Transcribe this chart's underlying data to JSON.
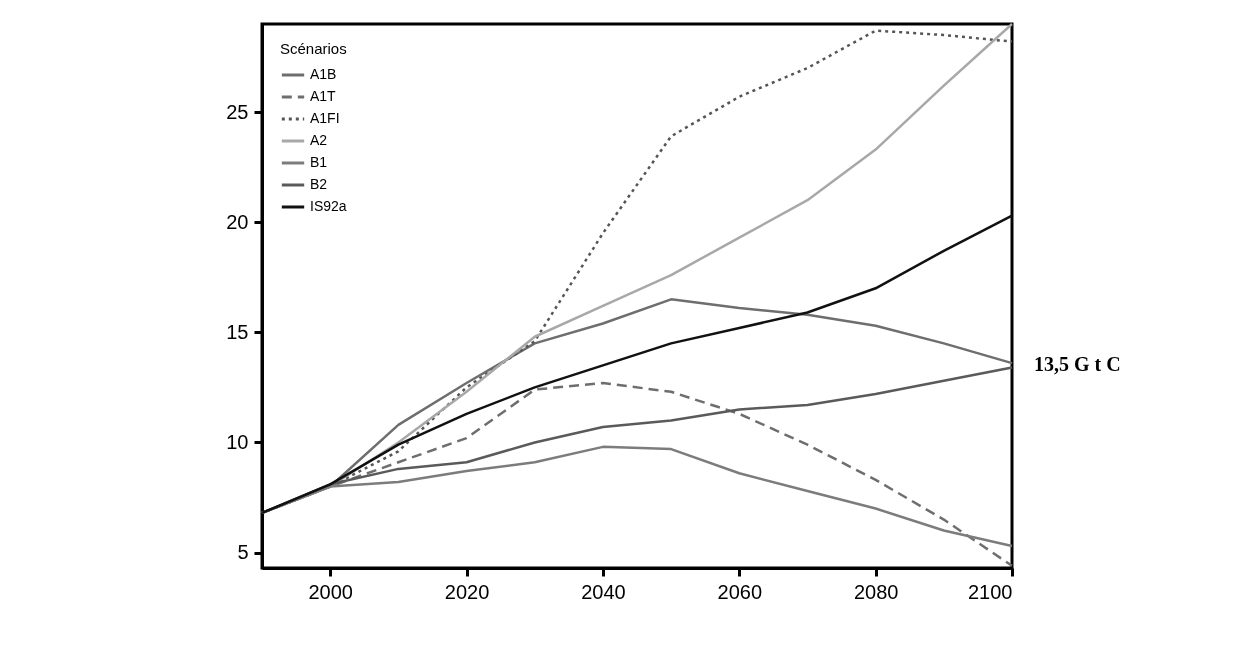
{
  "chart_data": {
    "type": "line",
    "x": [
      1990,
      2000,
      2010,
      2020,
      2030,
      2040,
      2050,
      2060,
      2070,
      2080,
      2090,
      2100
    ],
    "series": [
      {
        "name": "A1B",
        "color": "#6e6e6e",
        "line_style": "solid",
        "values": [
          6.8,
          8.0,
          10.8,
          12.7,
          14.5,
          15.4,
          16.5,
          16.1,
          15.8,
          15.3,
          14.5,
          13.6
        ]
      },
      {
        "name": "A1T",
        "color": "#6e6e6e",
        "line_style": "dashed",
        "values": [
          6.8,
          8.0,
          9.1,
          10.2,
          12.4,
          12.7,
          12.3,
          11.3,
          9.9,
          8.3,
          6.5,
          4.4
        ]
      },
      {
        "name": "A1FI",
        "color": "#555555",
        "line_style": "dotted",
        "values": [
          6.8,
          8.0,
          9.6,
          12.5,
          14.6,
          19.5,
          23.9,
          25.7,
          27.0,
          28.7,
          28.5,
          28.2
        ]
      },
      {
        "name": "A2",
        "color": "#a8a8a8",
        "line_style": "solid",
        "values": [
          6.8,
          8.0,
          10.0,
          12.3,
          14.8,
          16.2,
          17.6,
          19.3,
          21.0,
          23.3,
          26.2,
          29.0
        ]
      },
      {
        "name": "B1",
        "color": "#7c7c7c",
        "line_style": "solid",
        "values": [
          6.8,
          8.0,
          8.2,
          8.7,
          9.1,
          9.8,
          9.7,
          8.6,
          7.8,
          7.0,
          6.0,
          5.3
        ]
      },
      {
        "name": "B2",
        "color": "#5a5a5a",
        "line_style": "solid",
        "values": [
          6.8,
          8.1,
          8.8,
          9.1,
          10.0,
          10.7,
          11.0,
          11.5,
          11.7,
          12.2,
          12.8,
          13.4
        ]
      },
      {
        "name": "IS92a",
        "color": "#111111",
        "line_style": "solid",
        "values": [
          6.8,
          8.1,
          9.9,
          11.3,
          12.5,
          13.5,
          14.5,
          15.2,
          15.9,
          17.0,
          18.7,
          20.3
        ]
      }
    ],
    "legend_title": "Scénarios",
    "legend": "top left",
    "xlim": [
      1990,
      2100
    ],
    "xticks": [
      2000,
      2020,
      2040,
      2060,
      2080,
      2100
    ],
    "ylim": [
      4.3,
      29.0
    ],
    "yticks": [
      5,
      10,
      15,
      20,
      25
    ],
    "grid": false,
    "annotations": [
      {
        "text": "13,5 G t C",
        "x": 2100,
        "y": 13.5
      }
    ]
  }
}
